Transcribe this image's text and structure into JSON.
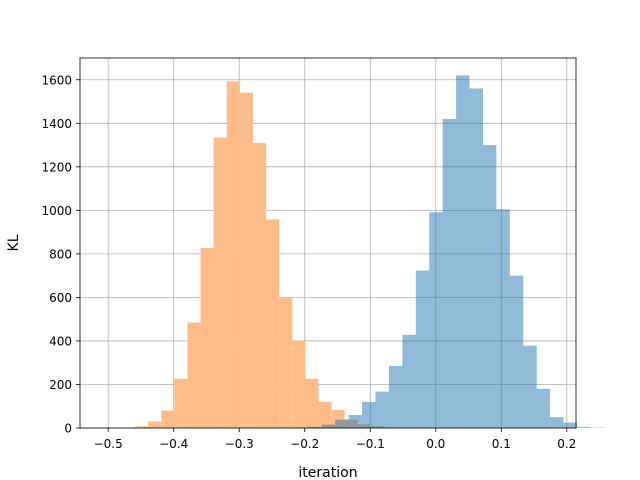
{
  "chart_data": {
    "type": "histogram",
    "title": "",
    "xlabel": "iteration",
    "ylabel": "KL",
    "xlim": [
      -0.543,
      0.214
    ],
    "ylim": [
      0,
      1700
    ],
    "grid": true,
    "x_ticks": [
      -0.5,
      -0.4,
      -0.3,
      -0.2,
      -0.1,
      0.0,
      0.1,
      0.2
    ],
    "x_tick_labels": [
      "−0.5",
      "−0.4",
      "−0.3",
      "−0.2",
      "−0.1",
      "0.0",
      "0.1",
      "0.2"
    ],
    "y_ticks": [
      0,
      200,
      400,
      600,
      800,
      1000,
      1200,
      1400,
      1600
    ],
    "y_tick_labels": [
      "0",
      "200",
      "400",
      "600",
      "800",
      "1000",
      "1200",
      "1400",
      "1600"
    ],
    "series": [
      {
        "color": "#ffbb88",
        "opacity": 1.0,
        "bin_start": -0.479,
        "bin_width": 0.02,
        "counts": [
          2,
          8,
          30,
          80,
          226,
          485,
          827,
          1335,
          1593,
          1540,
          1310,
          958,
          597,
          400,
          226,
          120,
          83,
          40,
          17,
          8,
          3,
          1
        ]
      },
      {
        "color": "#1f77b4",
        "opacity": 0.5,
        "bin_start": -0.215,
        "bin_width": 0.0205,
        "counts": [
          2,
          5,
          15,
          38,
          60,
          120,
          167,
          285,
          428,
          723,
          991,
          1420,
          1620,
          1560,
          1300,
          1005,
          700,
          378,
          180,
          50,
          25,
          5,
          2
        ]
      }
    ]
  }
}
